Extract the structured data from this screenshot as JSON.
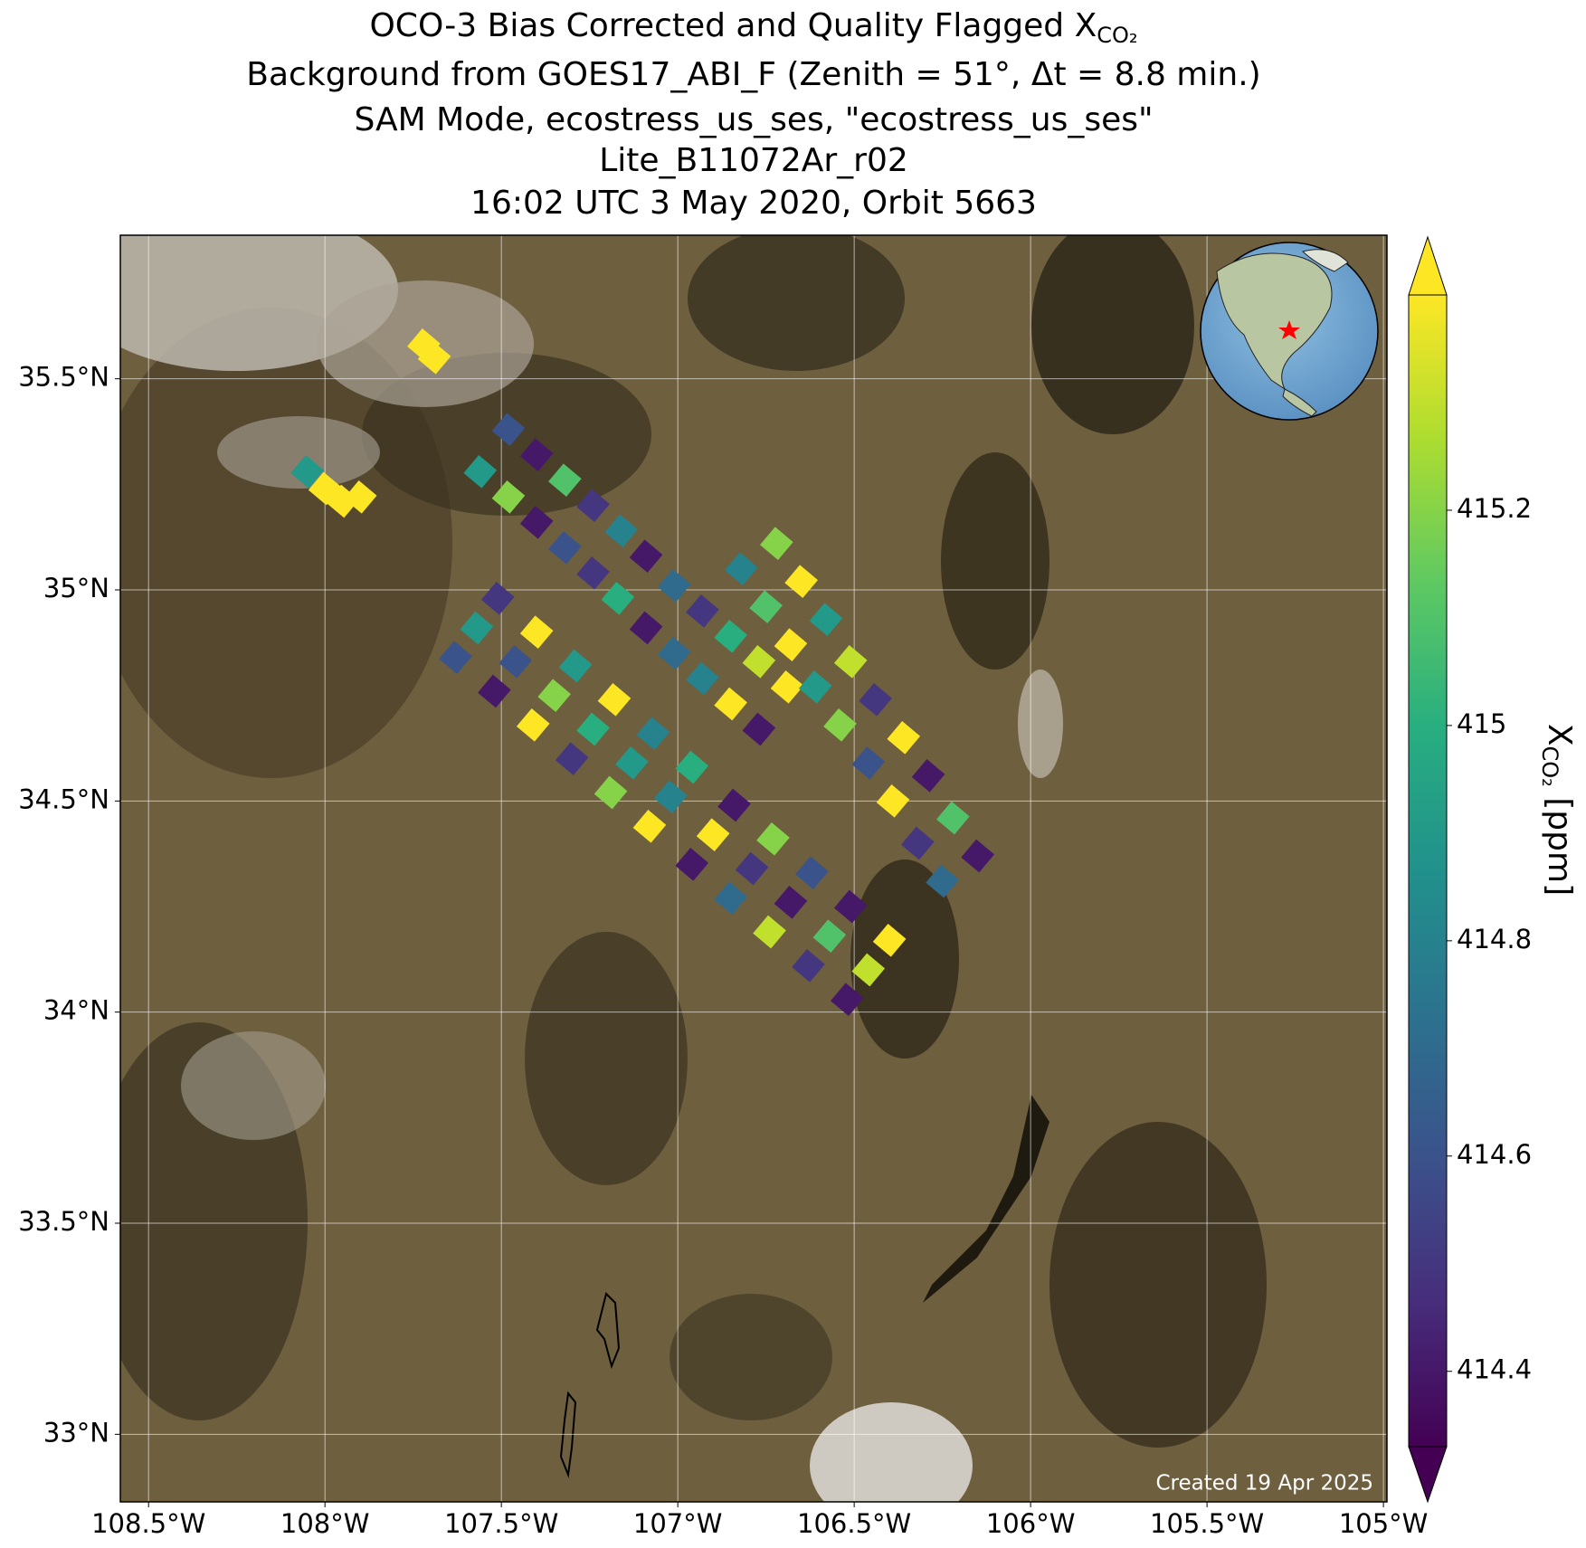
{
  "chart_data": {
    "type": "scatter",
    "title_lines": [
      "OCO-3 Bias Corrected and Quality Flagged X",
      "Background from GOES17_ABI_F (Zenith = 51°, Δt =  8.8 min.)",
      "SAM Mode, ecostress_us_ses, \"ecostress_us_ses\"",
      "Lite_B11072Ar_r02",
      "16:02 UTC 3 May 2020, Orbit 5663"
    ],
    "title_subscript": "CO₂",
    "footer": "Created 19 Apr 2025",
    "xlim": [
      -108.58,
      -104.99
    ],
    "ylim": [
      32.84,
      35.84
    ],
    "xticks": [
      {
        "value": -108.5,
        "label": "108.5°W"
      },
      {
        "value": -108,
        "label": "108°W"
      },
      {
        "value": -107.5,
        "label": "107.5°W"
      },
      {
        "value": -107,
        "label": "107°W"
      },
      {
        "value": -106.5,
        "label": "106.5°W"
      },
      {
        "value": -106,
        "label": "106°W"
      },
      {
        "value": -105.5,
        "label": "105.5°W"
      },
      {
        "value": -105,
        "label": "105°W"
      }
    ],
    "yticks": [
      {
        "value": 33,
        "label": "33°N"
      },
      {
        "value": 33.5,
        "label": "33.5°N"
      },
      {
        "value": 34,
        "label": "34°N"
      },
      {
        "value": 34.5,
        "label": "34.5°N"
      },
      {
        "value": 35,
        "label": "35°N"
      },
      {
        "value": 35.5,
        "label": "35.5°N"
      }
    ],
    "grid": true,
    "colormap": "viridis",
    "clim": [
      414.33,
      415.4
    ],
    "cticks": [
      414.4,
      414.6,
      414.8,
      415.0,
      415.2
    ],
    "colorbar_label": {
      "symbol": "X",
      "subscript": "CO₂",
      "unit": " [ppm]"
    },
    "x": [
      -107.48,
      -107.4,
      -107.32,
      -107.24,
      -107.16,
      -107.09,
      -107.01,
      -106.93,
      -106.85,
      -106.77,
      -106.69,
      -107.56,
      -107.48,
      -107.4,
      -107.32,
      -107.24,
      -107.17,
      -107.09,
      -107.01,
      -106.93,
      -106.85,
      -106.77,
      -106.72,
      -106.65,
      -106.58,
      -106.51,
      -106.44,
      -106.36,
      -106.29,
      -106.22,
      -106.15,
      -106.82,
      -106.75,
      -106.68,
      -106.61,
      -106.54,
      -106.46,
      -106.39,
      -106.32,
      -106.25,
      -107.57,
      -107.46,
      -107.35,
      -107.24,
      -107.13,
      -107.02,
      -106.9,
      -106.79,
      -106.68,
      -106.57,
      -106.46,
      -107.51,
      -107.4,
      -107.29,
      -107.18,
      -107.07,
      -106.96,
      -106.84,
      -106.73,
      -106.62,
      -106.51,
      -106.4,
      -107.63,
      -107.52,
      -107.41,
      -107.3,
      -107.19,
      -107.08,
      -106.96,
      -106.85,
      -106.74,
      -106.63,
      -106.52,
      -107.72,
      -107.69,
      -108.0,
      -107.95,
      -108.05,
      -107.9
    ],
    "y": [
      35.38,
      35.32,
      35.26,
      35.2,
      35.14,
      35.08,
      35.01,
      34.95,
      34.89,
      34.83,
      34.77,
      35.28,
      35.22,
      35.16,
      35.1,
      35.04,
      34.98,
      34.91,
      34.85,
      34.79,
      34.73,
      34.67,
      35.11,
      35.02,
      34.93,
      34.83,
      34.74,
      34.65,
      34.56,
      34.46,
      34.37,
      35.05,
      34.96,
      34.87,
      34.77,
      34.68,
      34.59,
      34.5,
      34.4,
      34.31,
      34.91,
      34.83,
      34.75,
      34.67,
      34.59,
      34.51,
      34.42,
      34.34,
      34.26,
      34.18,
      34.1,
      34.98,
      34.9,
      34.82,
      34.74,
      34.66,
      34.58,
      34.49,
      34.41,
      34.33,
      34.25,
      34.17,
      34.84,
      34.76,
      34.68,
      34.6,
      34.52,
      34.44,
      34.35,
      34.27,
      34.19,
      34.11,
      34.03,
      35.58,
      35.55,
      35.24,
      35.21,
      35.28,
      35.22
    ],
    "values": [
      414.6,
      414.4,
      415.1,
      414.5,
      414.8,
      414.4,
      414.7,
      414.5,
      415.0,
      415.3,
      415.4,
      414.9,
      415.2,
      414.4,
      414.6,
      414.5,
      415.0,
      414.4,
      414.7,
      414.8,
      415.4,
      414.4,
      415.2,
      415.4,
      414.9,
      415.3,
      414.5,
      415.4,
      414.4,
      415.1,
      414.4,
      414.8,
      415.1,
      415.4,
      414.9,
      415.2,
      414.6,
      415.4,
      414.5,
      414.7,
      414.9,
      414.6,
      415.2,
      415.0,
      414.9,
      414.8,
      415.4,
      414.5,
      414.4,
      415.1,
      415.3,
      414.5,
      415.4,
      414.9,
      415.4,
      414.8,
      415.0,
      414.4,
      415.2,
      414.6,
      414.4,
      415.4,
      414.6,
      414.4,
      415.4,
      414.5,
      415.2,
      415.4,
      414.4,
      414.7,
      415.3,
      414.5,
      414.4,
      415.4,
      415.4,
      415.4,
      415.4,
      414.9,
      415.4
    ]
  }
}
